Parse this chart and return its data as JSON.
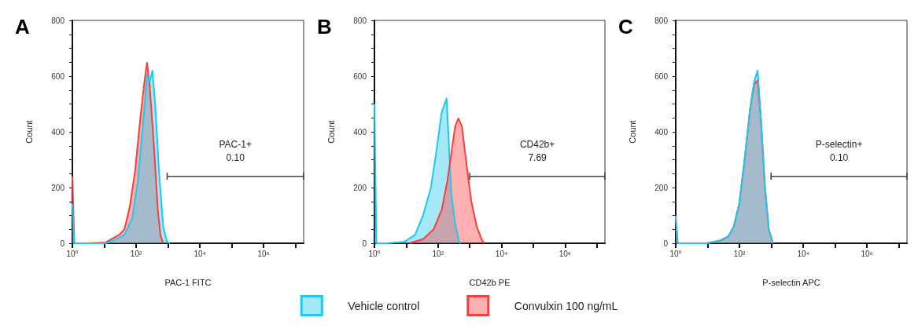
{
  "chart_data": [
    {
      "type": "area",
      "title": "A",
      "xlabel": "PAC-1 FITC",
      "ylabel": "Count",
      "log": "x",
      "xlim": [
        1,
        18000000
      ],
      "ylim": [
        0,
        800
      ],
      "xticks": [
        {
          "value": 1,
          "label": "10⁰"
        },
        {
          "value": 10,
          "label": null
        },
        {
          "value": 100,
          "label": "10²"
        },
        {
          "value": 1000,
          "label": null
        },
        {
          "value": 10000,
          "label": "10⁴"
        },
        {
          "value": 100000,
          "label": null
        },
        {
          "value": 1000000,
          "label": "10⁶"
        },
        {
          "value": 10000000,
          "label": null
        }
      ],
      "yticks": [
        0,
        {
          "value": 50,
          "label": null
        },
        {
          "value": 100,
          "label": null
        },
        {
          "value": 150,
          "label": null
        },
        200,
        {
          "value": 250,
          "label": null
        },
        {
          "value": 300,
          "label": null
        },
        {
          "value": 350,
          "label": null
        },
        400,
        {
          "value": 450,
          "label": null
        },
        {
          "value": 500,
          "label": null
        },
        {
          "value": 550,
          "label": null
        },
        600,
        {
          "value": 650,
          "label": null
        },
        {
          "value": 700,
          "label": null
        },
        {
          "value": 750,
          "label": null
        },
        800
      ],
      "series": [
        {
          "color": "#ff3b3b",
          "x": [
            1,
            1.15,
            2.8,
            11,
            20,
            29,
            43,
            63,
            93,
            136,
            182,
            220,
            268,
            357,
            478,
            578,
            708
          ],
          "values": [
            240,
            0,
            0,
            3,
            20,
            30,
            50,
            130,
            260,
            450,
            580,
            648,
            560,
            360,
            120,
            30,
            0
          ]
        },
        {
          "color": "#1ec8f0",
          "x": [
            1,
            1.15,
            11,
            24,
            43,
            76,
            112,
            166,
            220,
            268,
            324,
            396,
            528,
            708,
            937,
            1140
          ],
          "values": [
            140,
            0,
            0,
            15,
            30,
            90,
            220,
            430,
            605,
            580,
            620,
            500,
            250,
            60,
            5,
            0
          ]
        },
        {
          "type": "line",
          "color": "#404040",
          "x": [
            940,
            940,
            940,
            18000000,
            18000000,
            18000000
          ],
          "values": [
            228,
            252,
            240,
            240,
            252,
            228
          ]
        }
      ],
      "annotations": [
        "PAC-1+",
        "0.10"
      ]
    },
    {
      "type": "area",
      "title": "B",
      "xlabel": "CD42b PE",
      "ylabel": "Count",
      "log": "x",
      "legend": "bottom",
      "xlim": [
        1,
        18000000
      ],
      "ylim": [
        0,
        800
      ],
      "xticks": [
        {
          "value": 1,
          "label": "10⁰"
        },
        {
          "value": 10,
          "label": null
        },
        {
          "value": 100,
          "label": "10²"
        },
        {
          "value": 1000,
          "label": null
        },
        {
          "value": 10000,
          "label": "10⁴"
        },
        {
          "value": 100000,
          "label": null
        },
        {
          "value": 1000000,
          "label": "10⁶"
        },
        {
          "value": 10000000,
          "label": null
        }
      ],
      "yticks": [
        0,
        {
          "value": 50,
          "label": null
        },
        {
          "value": 100,
          "label": null
        },
        {
          "value": 150,
          "label": null
        },
        200,
        {
          "value": 250,
          "label": null
        },
        {
          "value": 300,
          "label": null
        },
        {
          "value": 350,
          "label": null
        },
        400,
        {
          "value": 450,
          "label": null
        },
        {
          "value": 500,
          "label": null
        },
        {
          "value": 550,
          "label": null
        },
        600,
        {
          "value": 650,
          "label": null
        },
        {
          "value": 700,
          "label": null
        },
        {
          "value": 750,
          "label": null
        },
        800
      ],
      "series": [
        {
          "name": "Vehicle control",
          "color": "#1ec8f0",
          "x": [
            1,
            1.15,
            2.4,
            8.5,
            19,
            34,
            60,
            89,
            131,
            187,
            262,
            347,
            468,
            520
          ],
          "values": [
            500,
            0,
            0,
            5,
            30,
            100,
            200,
            330,
            470,
            520,
            180,
            70,
            5,
            0
          ]
        },
        {
          "name": "Convulxin 100 ng/mL",
          "color": "#ff3b3b",
          "x": [
            12.6,
            34,
            73,
            131,
            195,
            262,
            347,
            437,
            567,
            760,
            1120,
            1660,
            2450,
            2900
          ],
          "values": [
            0,
            15,
            50,
            120,
            220,
            320,
            420,
            448,
            420,
            300,
            150,
            60,
            10,
            0
          ]
        },
        {
          "type": "line",
          "color": "#404040",
          "x": [
            1000,
            1000,
            1000,
            18000000,
            18000000,
            18000000
          ],
          "values": [
            228,
            252,
            240,
            240,
            252,
            228
          ]
        }
      ],
      "annotations": [
        "CD42b+",
        "7.69"
      ]
    },
    {
      "type": "area",
      "title": "C",
      "xlabel": "P-selectin APC",
      "ylabel": "Count",
      "log": "x",
      "xlim": [
        1,
        18000000
      ],
      "ylim": [
        0,
        800
      ],
      "xticks": [
        {
          "value": 1,
          "label": "10⁰"
        },
        {
          "value": 10,
          "label": null
        },
        {
          "value": 100,
          "label": "10²"
        },
        {
          "value": 1000,
          "label": null
        },
        {
          "value": 10000,
          "label": "10⁴"
        },
        {
          "value": 100000,
          "label": null
        },
        {
          "value": 1000000,
          "label": "10⁶"
        },
        {
          "value": 10000000,
          "label": null
        }
      ],
      "yticks": [
        0,
        {
          "value": 50,
          "label": null
        },
        {
          "value": 100,
          "label": null
        },
        {
          "value": 150,
          "label": null
        },
        200,
        {
          "value": 250,
          "label": null
        },
        {
          "value": 300,
          "label": null
        },
        {
          "value": 350,
          "label": null
        },
        400,
        {
          "value": 450,
          "label": null
        },
        {
          "value": 500,
          "label": null
        },
        {
          "value": 550,
          "label": null
        },
        600,
        {
          "value": 650,
          "label": null
        },
        {
          "value": 700,
          "label": null
        },
        {
          "value": 750,
          "label": null
        },
        800
      ],
      "series": [
        {
          "color": "#ff3b3b",
          "x": [
            1,
            1.15,
            9.4,
            25,
            45,
            66,
            98,
            145,
            214,
            288,
            371,
            468,
            631,
            832,
            1120
          ],
          "values": [
            95,
            0,
            0,
            10,
            25,
            60,
            140,
            300,
            480,
            570,
            585,
            450,
            200,
            50,
            0
          ]
        },
        {
          "color": "#1ec8f0",
          "x": [
            1,
            1.15,
            9.4,
            25,
            45,
            66,
            98,
            145,
            214,
            288,
            371,
            468,
            631,
            832,
            1120
          ],
          "values": [
            98,
            0,
            0,
            10,
            25,
            60,
            140,
            300,
            480,
            580,
            620,
            450,
            200,
            50,
            0
          ]
        },
        {
          "type": "line",
          "color": "#404040",
          "x": [
            980,
            980,
            980,
            18000000,
            18000000,
            18000000
          ],
          "values": [
            228,
            252,
            240,
            240,
            252,
            228
          ]
        }
      ],
      "annotations": [
        "P-selectin+",
        "0.10"
      ]
    }
  ]
}
